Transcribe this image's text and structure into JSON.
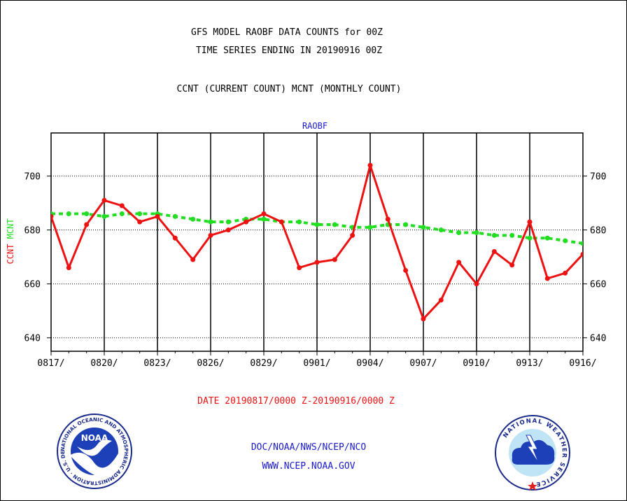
{
  "header": {
    "title_line1": "GFS MODEL RAOBF DATA COUNTS for 00Z",
    "title_line2": "TIME SERIES ENDING IN 20190916 00Z",
    "subtitle": "CCNT (CURRENT COUNT) MCNT (MONTHLY COUNT)"
  },
  "footer": {
    "date_range": "DATE 20190817/0000 Z-20190916/0000 Z",
    "org_line": "DOC/NOAA/NWS/NCEP/NCO",
    "url_line": "WWW.NCEP.NOAA.GOV"
  },
  "logos": {
    "noaa_text": "NOAA",
    "noaa_ring_text": "NATIONAL OCEANIC AND ATMOSPHERIC ADMINISTRATION · U.S. DEPARTMENT OF COMMERCE",
    "nws_ring_text": "NATIONAL WEATHER SERVICE"
  },
  "colors": {
    "ccnt": "#ee1111",
    "mcnt": "#22dd22",
    "title_blue": "#1a1acc",
    "date_red": "#ee1111"
  },
  "chart_data": {
    "type": "line",
    "title": "RAOBF",
    "ylabel_ccnt": "CCNT",
    "ylabel_mcnt": "MCNT",
    "ylim": [
      635,
      716
    ],
    "yticks": [
      640,
      660,
      680,
      700
    ],
    "x_tick_labels": [
      "0817/",
      "0820/",
      "0823/",
      "0826/",
      "0829/",
      "0901/",
      "0904/",
      "0907/",
      "0910/",
      "0913/",
      "0916/"
    ],
    "grid": true,
    "series": [
      {
        "name": "CCNT",
        "style": "solid",
        "values": [
          685,
          666,
          682,
          691,
          689,
          683,
          685,
          677,
          669,
          678,
          680,
          683,
          686,
          683,
          666,
          668,
          669,
          678,
          704,
          684,
          665,
          647,
          654,
          668,
          660,
          672,
          667,
          683,
          662,
          664,
          671
        ]
      },
      {
        "name": "MCNT",
        "style": "dashed",
        "values": [
          686,
          686,
          686,
          685,
          686,
          686,
          686,
          685,
          684,
          683,
          683,
          684,
          684,
          683,
          683,
          682,
          682,
          681,
          681,
          682,
          682,
          681,
          680,
          679,
          679,
          678,
          678,
          677,
          677,
          676,
          675
        ]
      }
    ]
  }
}
